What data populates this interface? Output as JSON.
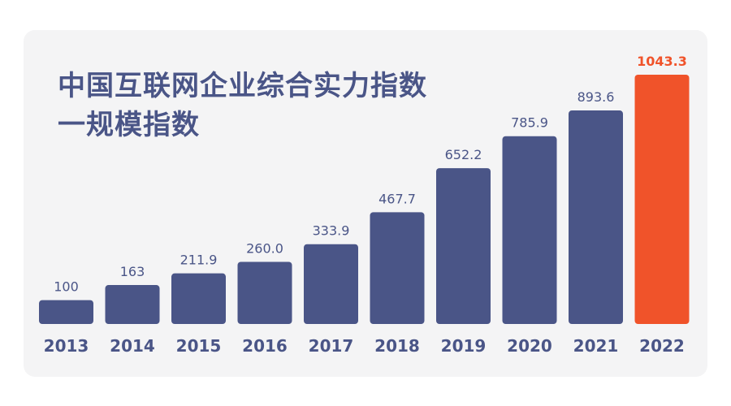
{
  "chart_data": {
    "type": "bar",
    "title": [
      "中国互联网企业综合实力指数",
      "一规模指数"
    ],
    "categories": [
      "2013",
      "2014",
      "2015",
      "2016",
      "2017",
      "2018",
      "2019",
      "2020",
      "2021",
      "2022"
    ],
    "values": [
      100,
      163,
      211.9,
      260.0,
      333.9,
      467.7,
      652.2,
      785.9,
      893.6,
      1043.3
    ],
    "value_labels": [
      "100",
      "163",
      "211.9",
      "260.0",
      "333.9",
      "467.7",
      "652.2",
      "785.9",
      "893.6",
      "1043.3"
    ],
    "highlight_index": 9,
    "xlabel": "",
    "ylabel": "",
    "ylim": [
      0,
      1043.3
    ],
    "grid": false,
    "colors": {
      "bar": "#4a5587",
      "highlight": "#f0532a",
      "value_text": "#4a5587",
      "highlight_text": "#f0532a",
      "year_text": "#4a5587",
      "title": "#4a5587",
      "background": "#f4f4f5"
    }
  }
}
